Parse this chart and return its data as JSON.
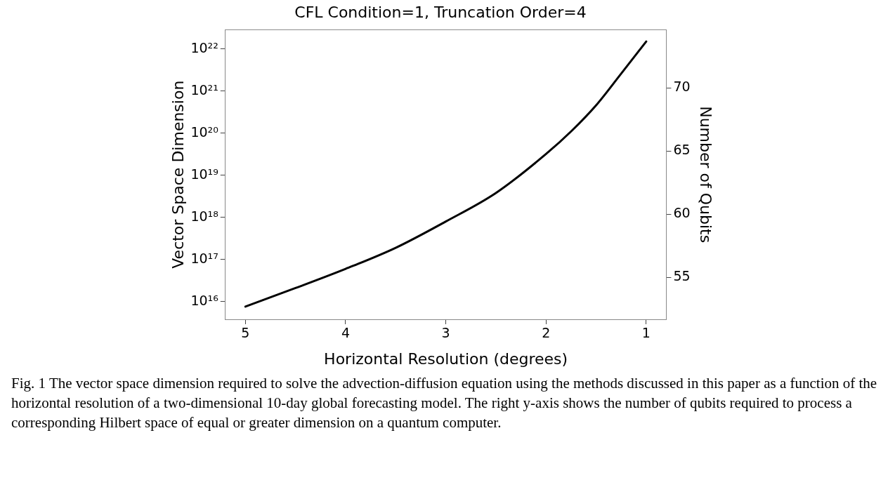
{
  "chart_data": {
    "type": "line",
    "title": "CFL Condition=1, Truncation Order=4",
    "xlabel": "Horizontal Resolution (degrees)",
    "ylabel": "Vector Space Dimension",
    "y2label": "Number of Qubits",
    "x": [
      5,
      4.5,
      4,
      3.5,
      3,
      2.5,
      2,
      1.75,
      1.5,
      1.25,
      1
    ],
    "series": [
      {
        "color": "#000000",
        "values": [
          7600000000000000.0,
          2.1e+16,
          6e+16,
          1.9e+17,
          8e+17,
          3.8e+18,
          3.2e+19,
          1.1e+20,
          4.6e+20,
          2.6e+21,
          1.5e+22
        ]
      }
    ],
    "log": "y",
    "xlim": [
      5.2,
      0.8
    ],
    "xticks": [
      5,
      4,
      3,
      2,
      1
    ],
    "ylim": [
      3800000000000000.0,
      2.85e+22
    ],
    "yticks": [
      {
        "value": 1e+16,
        "label": "10¹⁶"
      },
      {
        "value": 1e+17,
        "label": "10¹⁷"
      },
      {
        "value": 1e+18,
        "label": "10¹⁸"
      },
      {
        "value": 1e+19,
        "label": "10¹⁹"
      },
      {
        "value": 1e+20,
        "label": "10²⁰"
      },
      {
        "value": 1e+21,
        "label": "10²¹"
      },
      {
        "value": 1e+22,
        "label": "10²²"
      }
    ],
    "y2lim": [
      51.7,
      74.6
    ],
    "y2ticks": [
      55,
      60,
      65,
      70
    ],
    "grid": false,
    "legend": false,
    "marker": "none",
    "line_style": "solid",
    "annotations": [
      "Fig. 1 The vector space dimension required to solve the advection-diffusion equation using the methods discussed in this paper as a function of the horizontal resolution of a two-dimensional 10-day global forecasting model. The right y-axis shows the number of qubits required to process a corresponding Hilbert space of equal or greater dimension on a quantum computer."
    ]
  }
}
